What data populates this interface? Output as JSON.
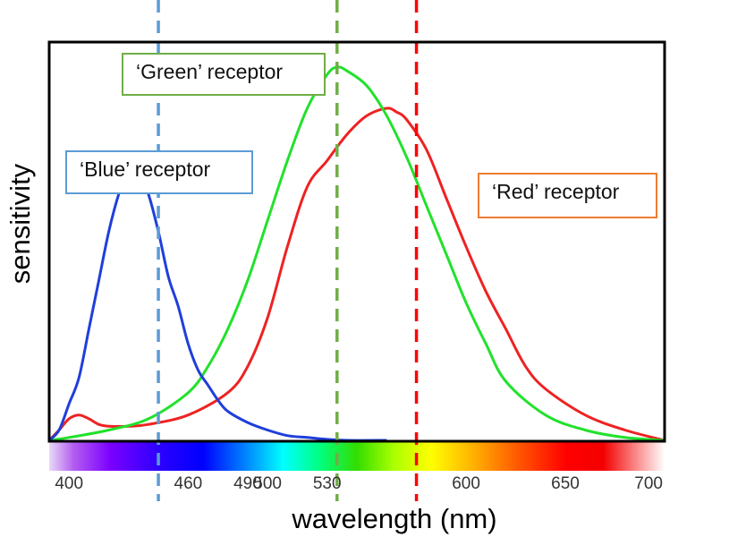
{
  "chart_data": {
    "type": "line",
    "xlabel": "wavelength (nm)",
    "ylabel": "sensitivity",
    "xlim": [
      390,
      700
    ],
    "ylim": [
      0,
      1
    ],
    "x_ticks": [
      {
        "value": 400,
        "label": "400"
      },
      {
        "value": 460,
        "label": "460"
      },
      {
        "value": 490,
        "label": "490"
      },
      {
        "value": 500,
        "label": "500"
      },
      {
        "value": 530,
        "label": "530"
      },
      {
        "value": 600,
        "label": "600"
      },
      {
        "value": 650,
        "label": "650"
      },
      {
        "value": 700,
        "label": "700"
      }
    ],
    "series": [
      {
        "name": "'Blue' receptor",
        "label": "‘Blue’ receptor",
        "color": "#1f3fdb",
        "x": [
          390,
          395,
          400,
          405,
          410,
          415,
          420,
          425,
          430,
          435,
          440,
          445,
          450,
          455,
          460,
          465,
          470,
          475,
          480,
          490,
          500,
          510,
          520,
          530,
          540,
          560
        ],
        "y": [
          0.0,
          0.03,
          0.1,
          0.17,
          0.3,
          0.43,
          0.56,
          0.66,
          0.73,
          0.72,
          0.66,
          0.56,
          0.44,
          0.36,
          0.26,
          0.19,
          0.15,
          0.11,
          0.08,
          0.05,
          0.03,
          0.015,
          0.01,
          0.005,
          0.0,
          0.0
        ]
      },
      {
        "name": "'Green' receptor",
        "label": "‘Green’ receptor",
        "color": "#22e12c",
        "x": [
          390,
          400,
          420,
          440,
          460,
          470,
          480,
          490,
          500,
          510,
          520,
          530,
          535,
          540,
          550,
          560,
          570,
          580,
          590,
          600,
          610,
          620,
          640,
          660,
          680,
          700
        ],
        "y": [
          0.0,
          0.01,
          0.03,
          0.06,
          0.13,
          0.2,
          0.3,
          0.43,
          0.59,
          0.75,
          0.89,
          0.98,
          1.0,
          0.99,
          0.95,
          0.87,
          0.76,
          0.63,
          0.5,
          0.37,
          0.26,
          0.16,
          0.07,
          0.03,
          0.01,
          0.0
        ]
      },
      {
        "name": "'Red' receptor",
        "label": "‘Red’ receptor",
        "color": "#ee2222",
        "x": [
          390,
          395,
          400,
          405,
          410,
          415,
          420,
          430,
          440,
          460,
          480,
          490,
          500,
          510,
          520,
          530,
          540,
          550,
          560,
          565,
          570,
          580,
          590,
          600,
          610,
          620,
          630,
          640,
          660,
          680,
          700
        ],
        "y": [
          0.0,
          0.03,
          0.06,
          0.07,
          0.06,
          0.045,
          0.04,
          0.04,
          0.045,
          0.07,
          0.13,
          0.2,
          0.33,
          0.52,
          0.68,
          0.75,
          0.82,
          0.87,
          0.89,
          0.88,
          0.86,
          0.78,
          0.65,
          0.52,
          0.4,
          0.3,
          0.2,
          0.14,
          0.07,
          0.03,
          0.0
        ]
      }
    ],
    "reference_lines": [
      {
        "x": 445,
        "color": "#5b9bd5"
      },
      {
        "x": 535,
        "color": "#70ad47"
      },
      {
        "x": 575,
        "color": "#ff0000"
      }
    ],
    "spectrum_bar": true,
    "grid": false
  }
}
